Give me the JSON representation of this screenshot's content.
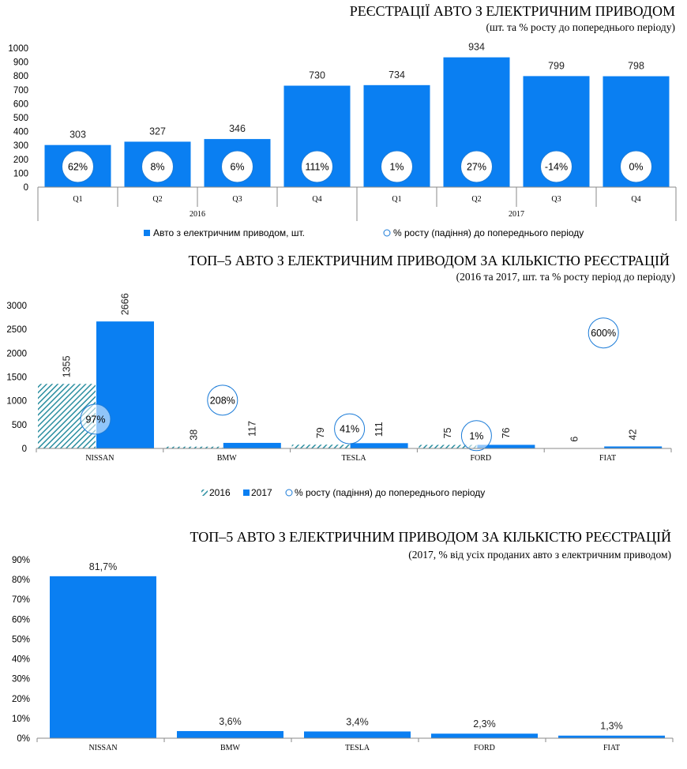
{
  "colors": {
    "bar": "#0a7ff2",
    "hatch": "#2a8ea0",
    "circle_stroke": "#1a7bd8"
  },
  "chart_data": [
    {
      "type": "bar",
      "title": "РЕЄСТРАЦІЇ АВТО З ЕЛЕКТРИЧНИМ ПРИВОДОМ",
      "subtitle": "(шт. та % росту до попереднього періоду)",
      "categories": [
        "Q1",
        "Q2",
        "Q3",
        "Q4",
        "Q1",
        "Q2",
        "Q3",
        "Q4"
      ],
      "groups": [
        {
          "label": "2016",
          "span": 4
        },
        {
          "label": "2017",
          "span": 4
        }
      ],
      "values": [
        303,
        327,
        346,
        730,
        734,
        934,
        799,
        798
      ],
      "value_labels": [
        "303",
        "327",
        "346",
        "730",
        "734",
        "934",
        "799",
        "798"
      ],
      "growth_labels": [
        "62%",
        "8%",
        "6%",
        "111%",
        "1%",
        "27%",
        "-14%",
        "0%"
      ],
      "yticks": [
        "0",
        "100",
        "200",
        "300",
        "400",
        "500",
        "600",
        "700",
        "800",
        "900",
        "1000"
      ],
      "ylim": [
        0,
        1000
      ],
      "legend": [
        "Авто з електричним  приводом,  шт.",
        "% росту (падіння) до попереднього  періоду"
      ]
    },
    {
      "type": "bar",
      "title": "ТОП–5 АВТО З ЕЛЕКТРИЧНИМ ПРИВОДОМ ЗА КІЛЬКІСТЮ РЕЄСТРАЦІЙ",
      "subtitle": "(2016 та 2017, шт. та % росту період до періоду)",
      "categories": [
        "NISSAN",
        "BMW",
        "TESLA",
        "FORD",
        "FIAT"
      ],
      "series": [
        {
          "name": "2016",
          "values": [
            1355,
            38,
            79,
            75,
            6
          ],
          "labels": [
            "1355",
            "38",
            "79",
            "75",
            "6"
          ]
        },
        {
          "name": "2017",
          "values": [
            2666,
            117,
            111,
            76,
            42
          ],
          "labels": [
            "2666",
            "117",
            "111",
            "76",
            "42"
          ]
        }
      ],
      "growth": [
        97,
        208,
        41,
        1,
        600
      ],
      "growth_labels": [
        "97%",
        "208%",
        "41%",
        "1%",
        "600%"
      ],
      "yticks": [
        "0",
        "500",
        "1000",
        "1500",
        "2000",
        "2500",
        "3000"
      ],
      "ylim": [
        0,
        3000
      ],
      "legend": [
        "2016",
        "2017",
        "% росту (падіння) до попереднього періоду"
      ]
    },
    {
      "type": "bar",
      "title": "ТОП–5 АВТО З ЕЛЕКТРИЧНИМ ПРИВОДОМ ЗА КІЛЬКІСТЮ РЕЄСТРАЦІЙ",
      "subtitle": "(2017, % від усіх проданих авто з електричним приводом)",
      "categories": [
        "NISSAN",
        "BMW",
        "TESLA",
        "FORD",
        "FIAT"
      ],
      "values": [
        81.7,
        3.6,
        3.4,
        2.3,
        1.3
      ],
      "value_labels": [
        "81,7%",
        "3,6%",
        "3,4%",
        "2,3%",
        "1,3%"
      ],
      "yticks": [
        "0%",
        "10%",
        "20%",
        "30%",
        "40%",
        "50%",
        "60%",
        "70%",
        "80%",
        "90%"
      ],
      "ylim": [
        0,
        90
      ]
    }
  ]
}
